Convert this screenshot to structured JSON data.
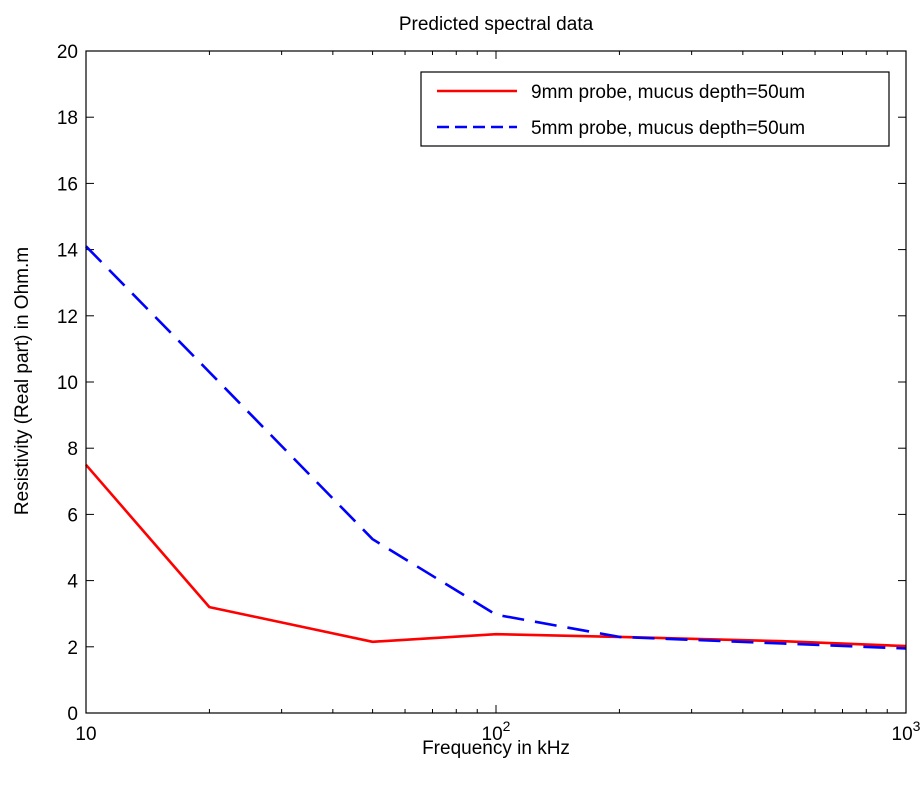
{
  "chart_data": {
    "type": "line",
    "title": "Predicted spectral data",
    "xlabel": "Frequency in kHz",
    "ylabel": "Resistivity (Real part)  in Ohm.m",
    "xscale": "log",
    "xlim": [
      10,
      1000
    ],
    "ylim": [
      0,
      20
    ],
    "x_ticks": [
      {
        "value": 10,
        "label": "10",
        "sup": ""
      },
      {
        "value": 100,
        "label": "10",
        "sup": "2"
      },
      {
        "value": 1000,
        "label": "10",
        "sup": "3"
      }
    ],
    "y_ticks": [
      0,
      2,
      4,
      6,
      8,
      10,
      12,
      14,
      16,
      18,
      20
    ],
    "grid": false,
    "legend_position": "top-right",
    "series": [
      {
        "name": "9mm probe, mucus depth=50um",
        "color": "#ff0000",
        "line_style": "solid",
        "x": [
          10,
          20,
          50,
          100,
          200,
          500,
          1000
        ],
        "y": [
          7.5,
          3.2,
          2.15,
          2.38,
          2.3,
          2.17,
          2.02
        ]
      },
      {
        "name": "5mm probe, mucus depth=50um",
        "color": "#0000ff",
        "line_style": "dashed",
        "x": [
          10,
          20,
          50,
          100,
          200,
          500,
          1000
        ],
        "y": [
          14.1,
          10.3,
          5.25,
          2.97,
          2.3,
          2.1,
          1.95
        ]
      }
    ]
  }
}
